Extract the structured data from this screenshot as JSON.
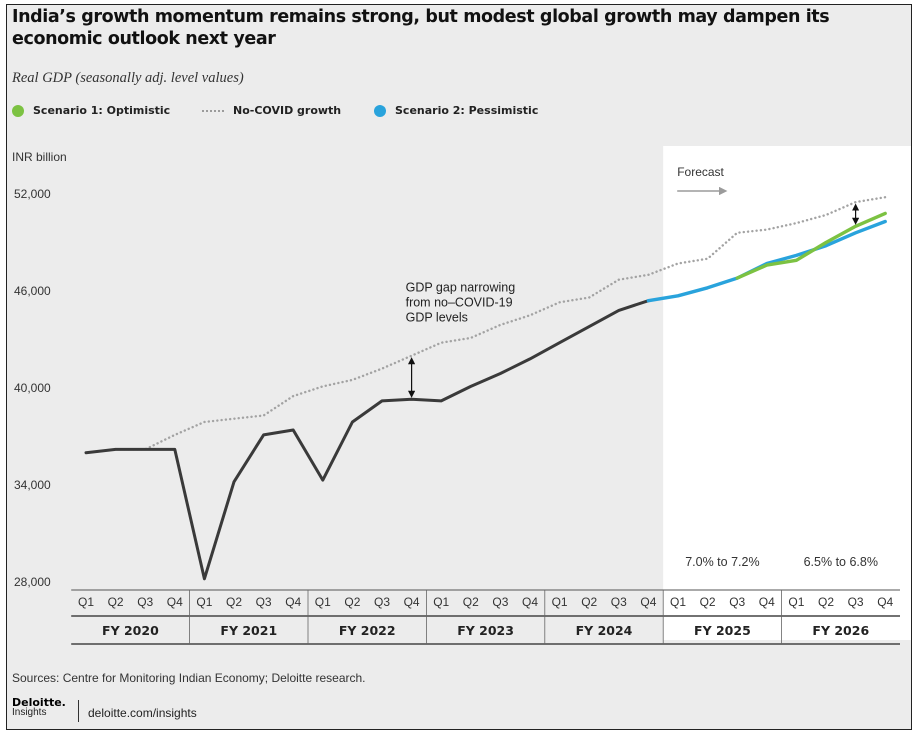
{
  "header": {
    "title": "India’s growth momentum remains strong, but modest global growth may dampen its economic outlook next year",
    "subtitle": "Real GDP (seasonally adj. level values)"
  },
  "legend": {
    "scenario1": "Scenario 1: Optimistic",
    "nocovid": "No-COVID growth",
    "scenario2": "Scenario 2: Pessimistic"
  },
  "colors": {
    "actual": "#3a3a3a",
    "scenario1": "#7cc242",
    "scenario2": "#29a3dc",
    "nocovid": "#a3a3a3",
    "forecast_panel": "#ffffff",
    "background": "#ececec"
  },
  "footer": {
    "source": "Sources: Centre for Monitoring Indian Economy; Deloitte research.",
    "brand": "Deloitte.",
    "brand_sub": "Insights",
    "site": "deloitte.com/insights"
  },
  "chart_data": {
    "type": "line",
    "ylabel": "INR billion",
    "ylim": [
      28000,
      52000
    ],
    "yticks": [
      28000,
      34000,
      40000,
      46000,
      52000
    ],
    "ytick_labels": [
      "28,000",
      "34,000",
      "40,000",
      "46,000",
      "52,000"
    ],
    "quarters": [
      "Q1",
      "Q2",
      "Q3",
      "Q4"
    ],
    "fiscal_years": [
      "FY 2020",
      "FY 2021",
      "FY 2022",
      "FY 2023",
      "FY 2024",
      "FY 2025",
      "FY 2026"
    ],
    "x": [
      "FY2020 Q1",
      "FY2020 Q2",
      "FY2020 Q3",
      "FY2020 Q4",
      "FY2021 Q1",
      "FY2021 Q2",
      "FY2021 Q3",
      "FY2021 Q4",
      "FY2022 Q1",
      "FY2022 Q2",
      "FY2022 Q3",
      "FY2022 Q4",
      "FY2023 Q1",
      "FY2023 Q2",
      "FY2023 Q3",
      "FY2023 Q4",
      "FY2024 Q1",
      "FY2024 Q2",
      "FY2024 Q3",
      "FY2024 Q4",
      "FY2025 Q1",
      "FY2025 Q2",
      "FY2025 Q3",
      "FY2025 Q4",
      "FY2026 Q1",
      "FY2026 Q2",
      "FY2026 Q3",
      "FY2026 Q4"
    ],
    "series": [
      {
        "name": "",
        "key": "actual",
        "values": [
          36000,
          36200,
          36200,
          36200,
          28200,
          34200,
          37100,
          37400,
          34300,
          37900,
          39200,
          39300,
          39200,
          40100,
          40900,
          41800,
          42800,
          43800,
          44800,
          45400,
          null,
          null,
          null,
          null,
          null,
          null,
          null,
          null
        ]
      },
      {
        "name": "No-COVID growth",
        "key": "nocovid",
        "values": [
          36000,
          36200,
          36200,
          37100,
          37900,
          38100,
          38300,
          39500,
          40100,
          40500,
          41200,
          42000,
          42800,
          43100,
          43900,
          44500,
          45300,
          45600,
          46700,
          47000,
          47700,
          48000,
          49600,
          49800,
          50200,
          50700,
          51500,
          51800
        ]
      },
      {
        "name": "Scenario 1: Optimistic",
        "key": "scenario1",
        "values": [
          null,
          null,
          null,
          null,
          null,
          null,
          null,
          null,
          null,
          null,
          null,
          null,
          null,
          null,
          null,
          null,
          null,
          null,
          null,
          null,
          null,
          null,
          46800,
          47600,
          47900,
          49000,
          50000,
          50800
        ]
      },
      {
        "name": "Scenario 2: Pessimistic",
        "key": "scenario2",
        "values": [
          null,
          null,
          null,
          null,
          null,
          null,
          null,
          null,
          null,
          null,
          null,
          null,
          null,
          null,
          null,
          null,
          null,
          null,
          null,
          45400,
          45700,
          46200,
          46800,
          47700,
          48200,
          48800,
          49600,
          50300
        ]
      }
    ],
    "forecast_label": "Forecast",
    "forecast_start_quarter": "FY2025 Q1",
    "annotations": [
      {
        "text_lines": [
          "GDP gap narrowing",
          "from no–COVID-19",
          "GDP levels"
        ],
        "quarter": "FY2022 Q4",
        "from": 42000,
        "to": 39300
      },
      {
        "quarter": "FY2026 Q3",
        "from": 51500,
        "to": 50000
      }
    ],
    "growth_labels": [
      {
        "text": "7.0% to 7.2%",
        "fiscal_year": "FY 2025"
      },
      {
        "text": "6.5% to 6.8%",
        "fiscal_year": "FY 2026"
      }
    ],
    "grid": false,
    "legend_position": "top-left"
  }
}
